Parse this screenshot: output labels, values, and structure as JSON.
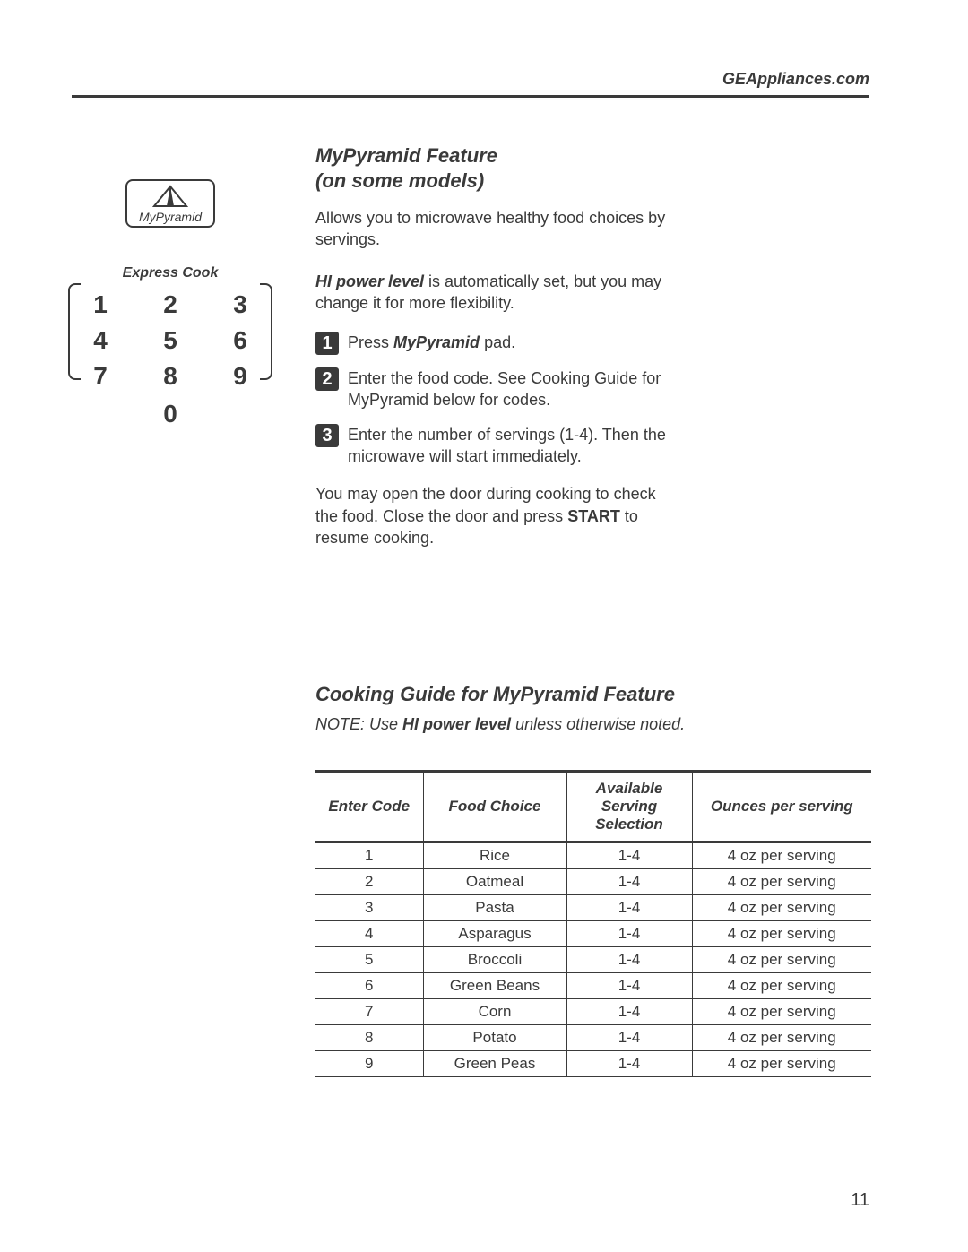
{
  "header": {
    "url": "GEAppliances.com"
  },
  "left": {
    "mypyramid_label": "MyPyramid",
    "express_cook_label": "Express Cook",
    "keypad": [
      [
        "1",
        "2",
        "3"
      ],
      [
        "4",
        "5",
        "6"
      ],
      [
        "7",
        "8",
        "9"
      ]
    ],
    "zero": "0"
  },
  "feature": {
    "title_line1": "MyPyramid Feature",
    "title_line2": "(on some models)",
    "intro": "Allows you to microwave healthy food choices by servings.",
    "hi_power_bold": "HI power level",
    "hi_power_rest": " is automatically set, but you may change it for more flexibility.",
    "steps": [
      {
        "num": "1",
        "pre": "Press ",
        "bold": "MyPyramid",
        "post": " pad."
      },
      {
        "num": "2",
        "text": "Enter the food code.  See Cooking Guide for MyPyramid below for codes."
      },
      {
        "num": "3",
        "text": "Enter the number of servings (1-4).  Then the microwave will start immediately."
      }
    ],
    "resume_pre": "You may open the door during cooking to check the food. Close the door and press ",
    "resume_bold": "START",
    "resume_post": " to resume cooking."
  },
  "guide": {
    "title": "Cooking Guide for MyPyramid Feature",
    "note_pre": "NOTE: Use ",
    "note_bold": "HI power level",
    "note_post": " unless otherwise noted.",
    "columns": [
      "Enter Code",
      "Food Choice",
      "Available Serving Selection",
      "Ounces per serving"
    ],
    "rows": [
      [
        "1",
        "Rice",
        "1-4",
        "4 oz per serving"
      ],
      [
        "2",
        "Oatmeal",
        "1-4",
        "4 oz per serving"
      ],
      [
        "3",
        "Pasta",
        "1-4",
        "4 oz per serving"
      ],
      [
        "4",
        "Asparagus",
        "1-4",
        "4 oz per serving"
      ],
      [
        "5",
        "Broccoli",
        "1-4",
        "4 oz per serving"
      ],
      [
        "6",
        "Green Beans",
        "1-4",
        "4 oz per serving"
      ],
      [
        "7",
        "Corn",
        "1-4",
        "4 oz per serving"
      ],
      [
        "8",
        "Potato",
        "1-4",
        "4 oz per serving"
      ],
      [
        "9",
        "Green Peas",
        "1-4",
        "4 oz per serving"
      ]
    ]
  },
  "page_number": "11",
  "colors": {
    "text": "#3a3a3a",
    "background": "#ffffff"
  }
}
